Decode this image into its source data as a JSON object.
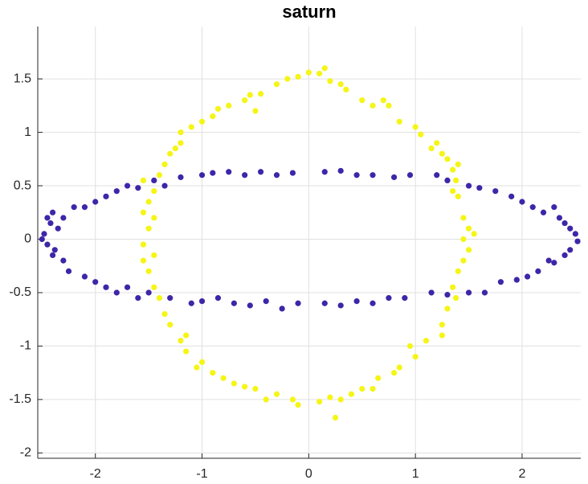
{
  "chart_data": {
    "type": "scatter",
    "title": "saturn",
    "xlim": [
      -2.54,
      2.55
    ],
    "ylim": [
      -2.05,
      1.99
    ],
    "xticks": [
      -2,
      -1,
      0,
      1,
      2
    ],
    "yticks": [
      -2,
      -1.5,
      -1,
      -0.5,
      0,
      0.5,
      1,
      1.5
    ],
    "grid": true,
    "series": [
      {
        "color": "#3e26a8",
        "x": [
          -2.5,
          -2.48,
          -2.45,
          -2.42,
          -2.4,
          -2.45,
          -2.35,
          -2.38,
          -2.4,
          -2.3,
          -2.3,
          -2.25,
          -2.2,
          -2.1,
          -2.1,
          -2.0,
          -2.0,
          -1.9,
          -1.9,
          -1.8,
          -1.8,
          -1.7,
          -1.7,
          -1.6,
          -1.6,
          -1.5,
          -1.45,
          -1.35,
          -1.3,
          -1.2,
          -1.1,
          -1.0,
          -1.0,
          -0.9,
          -0.85,
          -0.75,
          -0.7,
          -0.6,
          -0.55,
          -0.45,
          -0.4,
          -0.3,
          -0.25,
          -0.15,
          -0.1,
          0.15,
          0.15,
          0.3,
          0.3,
          0.45,
          0.45,
          0.6,
          0.6,
          0.8,
          0.75,
          0.95,
          0.9,
          1.2,
          1.15,
          1.3,
          1.3,
          1.5,
          1.5,
          1.6,
          1.65,
          1.75,
          1.8,
          1.9,
          1.95,
          2.0,
          2.05,
          2.1,
          2.15,
          2.2,
          2.25,
          2.3,
          2.3,
          2.35,
          2.4,
          2.45,
          2.5,
          2.45,
          2.52,
          2.4
        ],
        "values": [
          0,
          0.05,
          -0.05,
          0.15,
          -0.15,
          0.2,
          0.1,
          -0.1,
          0.25,
          -0.2,
          0.2,
          -0.3,
          0.3,
          0.3,
          -0.35,
          -0.4,
          0.35,
          0.4,
          -0.45,
          0.45,
          -0.5,
          0.5,
          -0.45,
          0.48,
          -0.55,
          -0.5,
          0.55,
          0.5,
          -0.55,
          0.58,
          -0.6,
          0.6,
          -0.58,
          0.62,
          -0.55,
          0.63,
          -0.6,
          0.6,
          -0.62,
          0.63,
          -0.58,
          0.6,
          -0.65,
          0.62,
          -0.6,
          0.63,
          -0.6,
          0.64,
          -0.62,
          0.6,
          -0.58,
          0.6,
          -0.6,
          0.58,
          -0.55,
          0.6,
          -0.55,
          0.6,
          -0.5,
          0.55,
          -0.52,
          0.5,
          -0.5,
          0.48,
          -0.5,
          0.45,
          -0.4,
          0.4,
          -0.38,
          0.35,
          -0.35,
          0.3,
          -0.3,
          0.25,
          -0.2,
          0.3,
          -0.22,
          0.2,
          -0.15,
          0.1,
          0.05,
          -0.1,
          -0.02,
          0.15
        ]
      },
      {
        "color": "#f5f516",
        "x": [
          -0.5,
          -0.6,
          -0.55,
          -0.45,
          -0.3,
          -0.2,
          -0.1,
          0,
          0.1,
          0.15,
          0.2,
          0.3,
          0.35,
          0.5,
          0.6,
          0.7,
          0.75,
          0.85,
          1.0,
          1.05,
          1.15,
          1.2,
          1.25,
          1.3,
          1.35,
          1.4,
          1.38,
          1.35,
          1.4,
          1.45,
          1.5,
          1.45,
          1.55,
          1.5,
          1.45,
          1.4,
          1.35,
          1.38,
          1.3,
          1.25,
          1.25,
          1.1,
          1.0,
          0.95,
          0.85,
          0.8,
          0.65,
          0.6,
          0.5,
          0.4,
          0.3,
          0.2,
          0.1,
          0.25,
          -0.1,
          -0.15,
          -0.3,
          -0.4,
          -0.5,
          -0.6,
          -0.7,
          -0.8,
          -0.9,
          -1.0,
          -1.05,
          -1.15,
          -1.2,
          -1.15,
          -1.3,
          -1.35,
          -1.4,
          -1.45,
          -1.5,
          -1.55,
          -1.45,
          -1.55,
          -1.5,
          -1.45,
          -1.55,
          -1.5,
          -1.45,
          -1.55,
          -1.4,
          -1.35,
          -1.3,
          -1.25,
          -1.2,
          -1.2,
          -1.1,
          -1.0,
          -0.9,
          -0.85,
          -0.75
        ],
        "values": [
          1.2,
          1.3,
          1.35,
          1.36,
          1.45,
          1.5,
          1.52,
          1.56,
          1.55,
          1.6,
          1.48,
          1.45,
          1.4,
          1.3,
          1.25,
          1.3,
          1.25,
          1.1,
          1.05,
          0.98,
          0.85,
          0.9,
          0.8,
          0.75,
          0.65,
          0.7,
          0.55,
          0.45,
          0.4,
          0.2,
          0.1,
          0,
          0.05,
          -0.1,
          -0.2,
          -0.3,
          -0.45,
          -0.55,
          -0.65,
          -0.8,
          -0.9,
          -0.95,
          -1.1,
          -1.0,
          -1.2,
          -1.25,
          -1.3,
          -1.4,
          -1.4,
          -1.45,
          -1.5,
          -1.48,
          -1.52,
          -1.67,
          -1.55,
          -1.5,
          -1.45,
          -1.5,
          -1.4,
          -1.38,
          -1.35,
          -1.3,
          -1.25,
          -1.15,
          -1.2,
          -1.05,
          -0.95,
          -0.9,
          -0.8,
          -0.7,
          -0.55,
          -0.45,
          -0.3,
          -0.2,
          -0.15,
          -0.05,
          0.1,
          0.2,
          0.25,
          0.35,
          0.45,
          0.55,
          0.6,
          0.7,
          0.8,
          0.85,
          0.9,
          1.0,
          1.05,
          1.1,
          1.15,
          1.22,
          1.25
        ]
      }
    ]
  }
}
